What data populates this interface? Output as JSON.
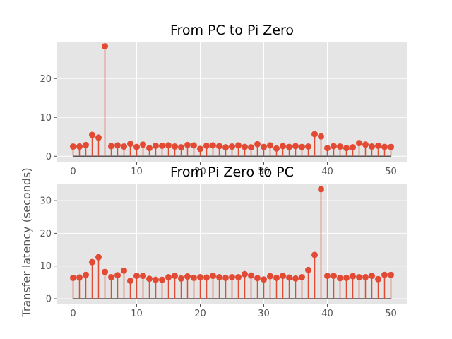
{
  "chart_data": [
    {
      "type": "stem",
      "title": "From PC to Pi Zero",
      "xlabel": "",
      "ylabel": "",
      "xlim": [
        -2.5,
        52.5
      ],
      "ylim": [
        -1.4,
        29.5
      ],
      "xticks": [
        0,
        10,
        20,
        30,
        40,
        50
      ],
      "yticks": [
        0,
        10,
        20
      ],
      "grid": true,
      "color": "#e24a33",
      "x": [
        0,
        1,
        2,
        3,
        4,
        5,
        6,
        7,
        8,
        9,
        10,
        11,
        12,
        13,
        14,
        15,
        16,
        17,
        18,
        19,
        20,
        21,
        22,
        23,
        24,
        25,
        26,
        27,
        28,
        29,
        30,
        31,
        32,
        33,
        34,
        35,
        36,
        37,
        38,
        39,
        40,
        41,
        42,
        43,
        44,
        45,
        46,
        47,
        48,
        49,
        50
      ],
      "values": [
        2.5,
        2.5,
        2.9,
        5.5,
        4.8,
        28.3,
        2.6,
        2.8,
        2.5,
        3.2,
        2.4,
        3.0,
        2.1,
        2.7,
        2.7,
        2.8,
        2.5,
        2.3,
        2.9,
        2.8,
        1.9,
        2.7,
        2.8,
        2.6,
        2.3,
        2.5,
        2.8,
        2.4,
        2.3,
        3.1,
        2.4,
        2.8,
        2.0,
        2.6,
        2.4,
        2.6,
        2.4,
        2.5,
        5.7,
        5.1,
        2.1,
        2.6,
        2.5,
        2.1,
        2.3,
        3.4,
        3.0,
        2.5,
        2.7,
        2.4,
        2.4
      ]
    },
    {
      "type": "stem",
      "title": "From Pi Zero to PC",
      "xlabel": "",
      "ylabel": "Transfer latency (seconds)",
      "xlim": [
        -2.5,
        52.5
      ],
      "ylim": [
        -1.5,
        35.2
      ],
      "xticks": [
        0,
        10,
        20,
        30,
        40,
        50
      ],
      "yticks": [
        0,
        10,
        20,
        30
      ],
      "grid": true,
      "color": "#e24a33",
      "x": [
        0,
        1,
        2,
        3,
        4,
        5,
        6,
        7,
        8,
        9,
        10,
        11,
        12,
        13,
        14,
        15,
        16,
        17,
        18,
        19,
        20,
        21,
        22,
        23,
        24,
        25,
        26,
        27,
        28,
        29,
        30,
        31,
        32,
        33,
        34,
        35,
        36,
        37,
        38,
        39,
        40,
        41,
        42,
        43,
        44,
        45,
        46,
        47,
        48,
        49,
        50
      ],
      "values": [
        6.4,
        6.5,
        7.3,
        11.2,
        12.7,
        8.2,
        6.6,
        7.2,
        8.6,
        5.5,
        7.0,
        7.0,
        6.1,
        5.8,
        5.8,
        6.6,
        7.0,
        6.2,
        6.8,
        6.4,
        6.6,
        6.5,
        7.0,
        6.6,
        6.4,
        6.6,
        6.6,
        7.5,
        7.1,
        6.3,
        5.9,
        6.9,
        6.4,
        7.0,
        6.5,
        6.2,
        6.6,
        8.8,
        13.4,
        33.5,
        7.0,
        7.0,
        6.3,
        6.4,
        6.9,
        6.6,
        6.6,
        7.0,
        6.0,
        7.3,
        7.3
      ]
    }
  ]
}
